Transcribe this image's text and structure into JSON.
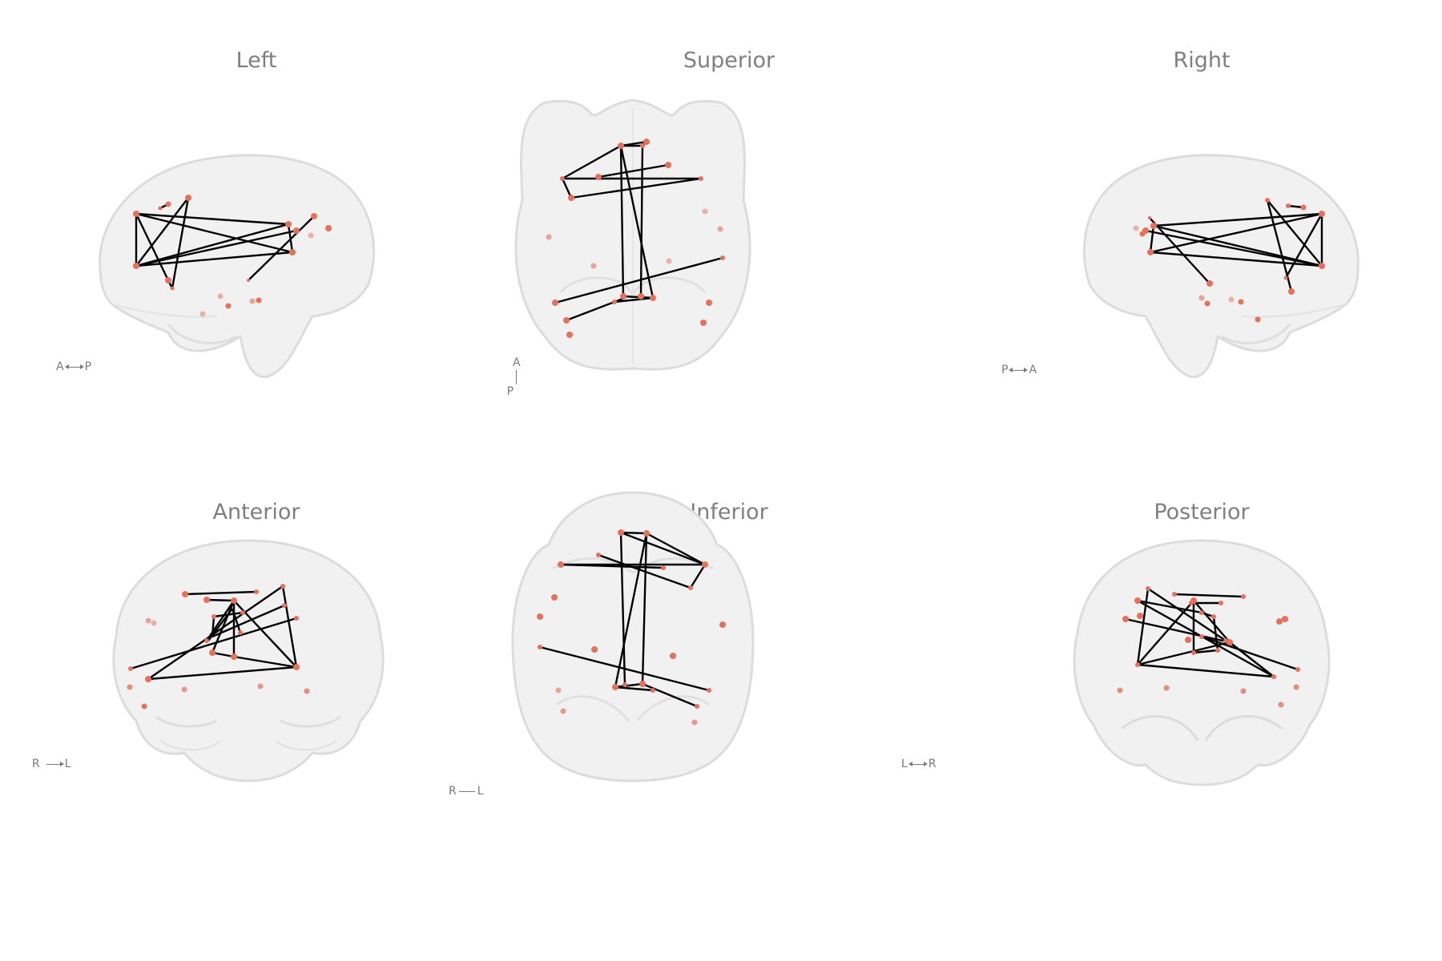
{
  "panels": [
    {
      "id": "left",
      "title": "Left",
      "orientation": [
        "A",
        "P"
      ]
    },
    {
      "id": "superior",
      "title": "Superior",
      "orientation": [
        "A",
        "P"
      ]
    },
    {
      "id": "right",
      "title": "Right",
      "orientation": [
        "P",
        "A"
      ]
    },
    {
      "id": "anterior",
      "title": "Anterior",
      "orientation": [
        "R",
        "L"
      ]
    },
    {
      "id": "inferior",
      "title": "Inferior",
      "orientation": [
        "R",
        "L"
      ]
    },
    {
      "id": "posterior",
      "title": "Posterior",
      "orientation": [
        "L",
        "R"
      ]
    }
  ],
  "colors": {
    "node": "#e8705a",
    "edge": "#000000",
    "brain_outline": "#dcdcdc",
    "brain_fill": "#f1f1f1",
    "title": "#7f7f7f"
  }
}
